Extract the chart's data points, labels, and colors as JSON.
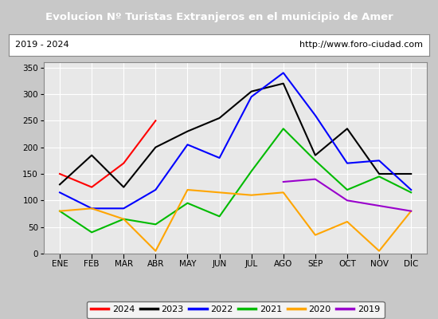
{
  "title": "Evolucion Nº Turistas Extranjeros en el municipio de Amer",
  "subtitle_left": "2019 - 2024",
  "subtitle_right": "http://www.foro-ciudad.com",
  "title_bg_color": "#4f81bd",
  "title_text_color": "#ffffff",
  "months": [
    "ENE",
    "FEB",
    "MAR",
    "ABR",
    "MAY",
    "JUN",
    "JUL",
    "AGO",
    "SEP",
    "OCT",
    "NOV",
    "DIC"
  ],
  "ylim": [
    0,
    360
  ],
  "yticks": [
    0,
    50,
    100,
    150,
    200,
    250,
    300,
    350
  ],
  "series": {
    "2024": {
      "color": "#ff0000",
      "values": [
        150,
        125,
        170,
        250,
        null,
        null,
        null,
        null,
        null,
        null,
        null,
        null
      ]
    },
    "2023": {
      "color": "#000000",
      "values": [
        130,
        185,
        125,
        200,
        230,
        255,
        305,
        320,
        185,
        235,
        150,
        150
      ]
    },
    "2022": {
      "color": "#0000ff",
      "values": [
        115,
        85,
        85,
        120,
        205,
        180,
        295,
        340,
        260,
        170,
        175,
        120
      ]
    },
    "2021": {
      "color": "#00bb00",
      "values": [
        80,
        40,
        65,
        55,
        95,
        70,
        155,
        235,
        175,
        120,
        145,
        115
      ]
    },
    "2020": {
      "color": "#ffa500",
      "values": [
        80,
        85,
        65,
        5,
        120,
        115,
        110,
        115,
        35,
        60,
        5,
        80
      ]
    },
    "2019": {
      "color": "#9900cc",
      "values": [
        null,
        null,
        null,
        null,
        null,
        null,
        null,
        135,
        140,
        100,
        90,
        80
      ]
    }
  },
  "legend_order": [
    "2024",
    "2023",
    "2022",
    "2021",
    "2020",
    "2019"
  ],
  "outer_bg": "#c8c8c8",
  "inner_bg": "#e8e8e8",
  "grid_color": "#ffffff"
}
